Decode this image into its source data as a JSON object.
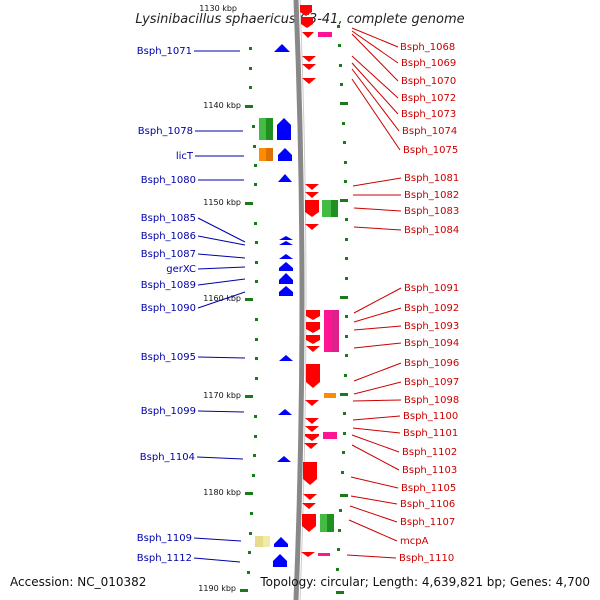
{
  "title": "Lysinibacillus sphaericus C3-41, complete genome",
  "accession": "Accession: NC_010382",
  "topology": "Topology: circular; Length: 4,639,821 bp; Genes: 4,700",
  "kbp_start": 1130,
  "kbp_step": 10,
  "colors": {
    "left_label": "#0000aa",
    "right_label": "#cc0000",
    "blue": "#0000ff",
    "red": "#ff0000",
    "pink": "#ff1493",
    "green": "#22aa22",
    "orange": "#ff8c00",
    "khaki": "#e6dc8c",
    "tick": "#1a7a1a",
    "backbone": "#888888"
  },
  "scale_labels": [
    "1130 kbp",
    "1140 kbp",
    "1150 kbp",
    "1160 kbp",
    "1170 kbp",
    "1180 kbp",
    "1190 kbp"
  ],
  "left_labels": [
    "Bsph_1071",
    "Bsph_1078",
    "licT",
    "Bsph_1080",
    "Bsph_1085",
    "Bsph_1086",
    "Bsph_1087",
    "gerXC",
    "Bsph_1089",
    "Bsph_1090",
    "Bsph_1095",
    "Bsph_1099",
    "Bsph_1104",
    "Bsph_1109",
    "Bsph_1112"
  ],
  "right_labels": [
    "Bsph_1068",
    "Bsph_1069",
    "Bsph_1070",
    "Bsph_1072",
    "Bsph_1073",
    "Bsph_1074",
    "Bsph_1075",
    "Bsph_1081",
    "Bsph_1082",
    "Bsph_1083",
    "Bsph_1084",
    "Bsph_1091",
    "Bsph_1092",
    "Bsph_1093",
    "Bsph_1094",
    "Bsph_1096",
    "Bsph_1097",
    "Bsph_1098",
    "Bsph_1100",
    "Bsph_1101",
    "Bsph_1102",
    "Bsph_1103",
    "Bsph_1105",
    "Bsph_1106",
    "Bsph_1107",
    "mcpA",
    "Bsph_1110"
  ]
}
